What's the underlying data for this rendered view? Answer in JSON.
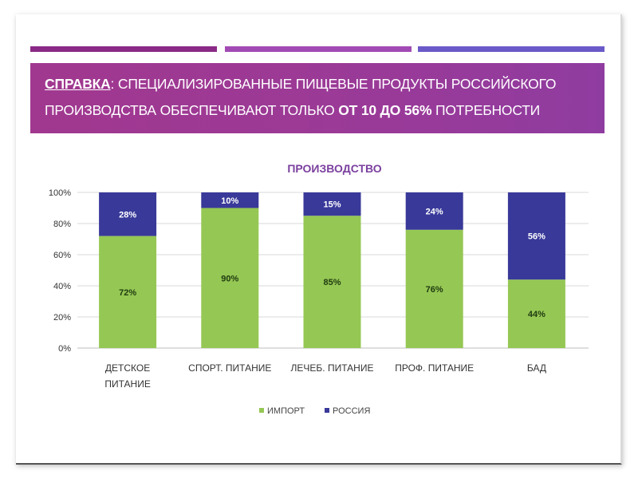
{
  "banner": {
    "lead": "СПРАВКА",
    "separator": ": ",
    "text1": "СПЕЦИАЛИЗИРОВАННЫЕ ПИЩЕВЫЕ ПРОДУКТЫ РОССИЙСКОГО",
    "text2a": "ПРОИЗВОДСТВА ОБЕСПЕЧИВАЮТ ТОЛЬКО ",
    "text2b": "ОТ 10 ДО 56%",
    "text2c": " ПОТРЕБНОСТИ"
  },
  "colors": {
    "accent_bar_1": "#8a2a86",
    "accent_bar_2": "#a24ab4",
    "accent_bar_3": "#6a5ac8",
    "banner": "#9a3a98",
    "import": "#95c754",
    "russia": "#39399a",
    "title": "#7a3f9e"
  },
  "chart_data": {
    "type": "bar",
    "stacked": true,
    "title": "ПРОИЗВОДСТВО",
    "categories": [
      [
        "ДЕТСКОЕ",
        "ПИТАНИЕ"
      ],
      [
        "СПОРТ. ПИТАНИЕ"
      ],
      [
        "ЛЕЧЕБ. ПИТАНИЕ"
      ],
      [
        "ПРОФ. ПИТАНИЕ"
      ],
      [
        "БАД"
      ]
    ],
    "series": [
      {
        "name": "ИМПОРТ",
        "values": [
          72,
          90,
          85,
          76,
          44
        ],
        "labels": [
          "72%",
          "90%",
          "85%",
          "76%",
          "44%"
        ],
        "color": "#95c754"
      },
      {
        "name": "РОССИЯ",
        "values": [
          28,
          10,
          15,
          24,
          56
        ],
        "labels": [
          "28%",
          "10%",
          "15%",
          "24%",
          "56%"
        ],
        "color": "#39399a"
      }
    ],
    "ylim": [
      0,
      100
    ],
    "yticks": [
      "0%",
      "20%",
      "40%",
      "60%",
      "80%",
      "100%"
    ],
    "grid": true,
    "legend": "bottom"
  }
}
